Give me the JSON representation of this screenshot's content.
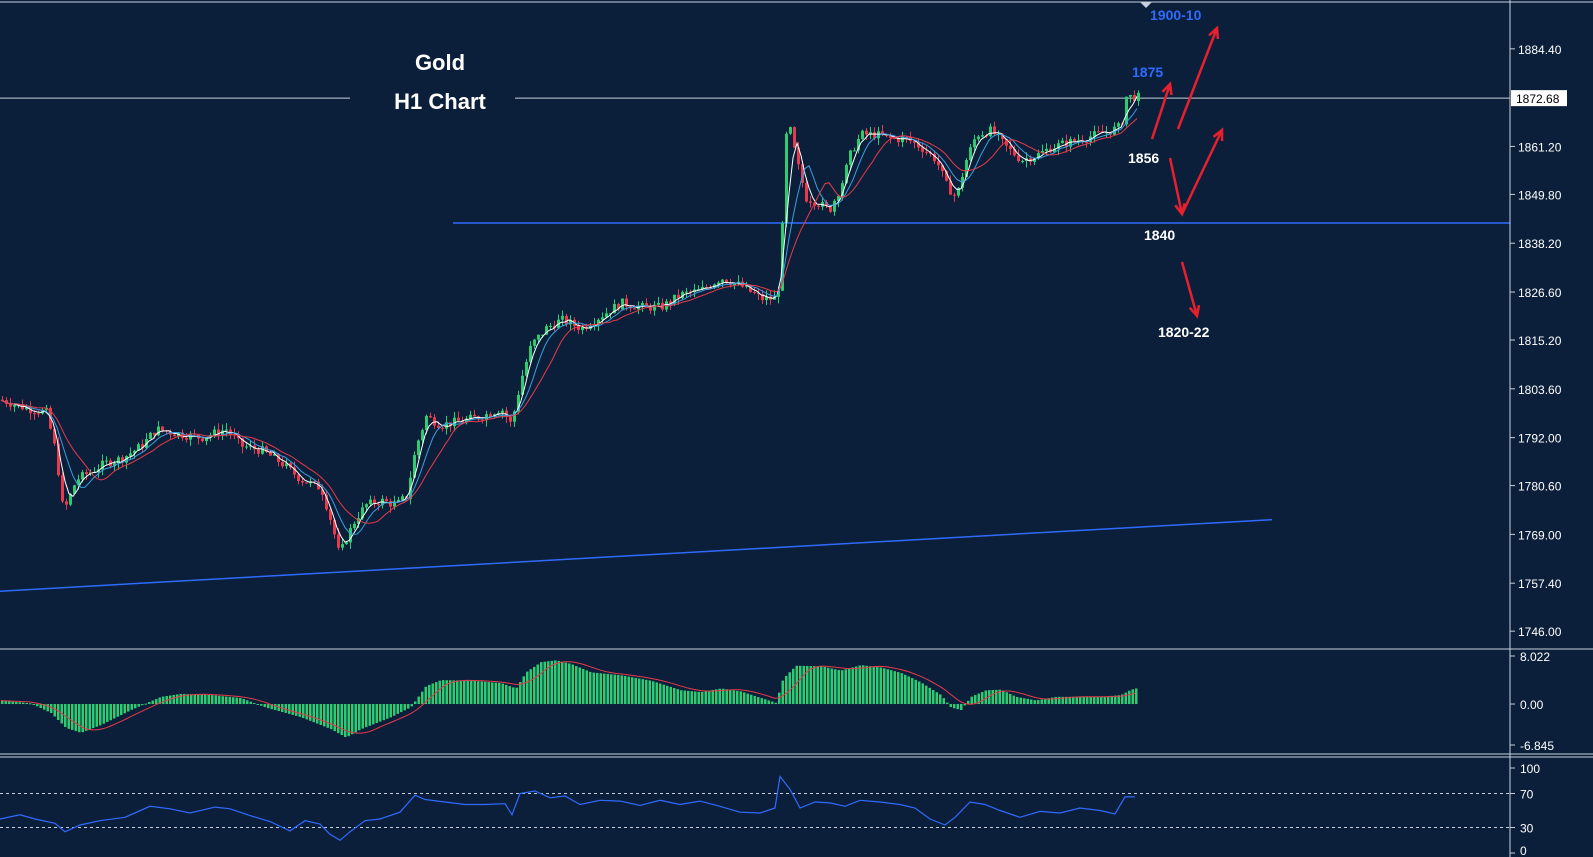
{
  "chart_data": {
    "type": "candlestick",
    "title": "Gold",
    "subtitle": "H1 Chart",
    "current_price": "1872.68",
    "price_axis_ticks": [
      "1884.40",
      "1872.68",
      "1861.20",
      "1849.80",
      "1838.20",
      "1826.60",
      "1815.20",
      "1803.60",
      "1792.00",
      "1780.60",
      "1769.00",
      "1757.40",
      "1746.00"
    ],
    "ylim": [
      1742,
      1896
    ],
    "horizontal_level": 1843,
    "annotations": [
      {
        "text": "1900-10",
        "color": "#2f6bff"
      },
      {
        "text": "1875",
        "color": "#2f6bff"
      },
      {
        "text": "1856",
        "color": "#ffffff"
      },
      {
        "text": "1840",
        "color": "#ffffff"
      },
      {
        "text": "1820-22",
        "color": "#ffffff"
      }
    ],
    "price_path": [
      [
        0,
        1801
      ],
      [
        25,
        1799
      ],
      [
        45,
        1798
      ],
      [
        55,
        1788
      ],
      [
        62,
        1774
      ],
      [
        75,
        1782
      ],
      [
        90,
        1784
      ],
      [
        105,
        1786
      ],
      [
        120,
        1787
      ],
      [
        140,
        1790
      ],
      [
        155,
        1794
      ],
      [
        175,
        1793
      ],
      [
        200,
        1792
      ],
      [
        225,
        1794
      ],
      [
        240,
        1790
      ],
      [
        260,
        1789
      ],
      [
        280,
        1786
      ],
      [
        300,
        1782
      ],
      [
        320,
        1780
      ],
      [
        330,
        1772
      ],
      [
        338,
        1764
      ],
      [
        345,
        1768
      ],
      [
        355,
        1773
      ],
      [
        365,
        1776
      ],
      [
        380,
        1777
      ],
      [
        395,
        1776
      ],
      [
        405,
        1778
      ],
      [
        415,
        1790
      ],
      [
        425,
        1797
      ],
      [
        440,
        1795
      ],
      [
        460,
        1796
      ],
      [
        480,
        1797
      ],
      [
        500,
        1799
      ],
      [
        510,
        1795
      ],
      [
        520,
        1806
      ],
      [
        530,
        1814
      ],
      [
        545,
        1818
      ],
      [
        560,
        1820
      ],
      [
        580,
        1818
      ],
      [
        600,
        1821
      ],
      [
        620,
        1824
      ],
      [
        640,
        1823
      ],
      [
        660,
        1823
      ],
      [
        680,
        1826
      ],
      [
        700,
        1827
      ],
      [
        720,
        1830
      ],
      [
        740,
        1828
      ],
      [
        760,
        1825
      ],
      [
        775,
        1825
      ],
      [
        780,
        1832
      ],
      [
        783,
        1862
      ],
      [
        788,
        1866
      ],
      [
        795,
        1858
      ],
      [
        805,
        1849
      ],
      [
        815,
        1848
      ],
      [
        828,
        1846
      ],
      [
        840,
        1852
      ],
      [
        850,
        1860
      ],
      [
        860,
        1864
      ],
      [
        875,
        1864
      ],
      [
        890,
        1863
      ],
      [
        905,
        1863
      ],
      [
        920,
        1861
      ],
      [
        935,
        1858
      ],
      [
        945,
        1852
      ],
      [
        955,
        1849
      ],
      [
        965,
        1858
      ],
      [
        975,
        1864
      ],
      [
        990,
        1865
      ],
      [
        1005,
        1861
      ],
      [
        1020,
        1858
      ],
      [
        1035,
        1859
      ],
      [
        1050,
        1861
      ],
      [
        1065,
        1862
      ],
      [
        1080,
        1863
      ],
      [
        1095,
        1864
      ],
      [
        1110,
        1865
      ],
      [
        1120,
        1866
      ],
      [
        1125,
        1873
      ],
      [
        1135,
        1873
      ],
      [
        1140,
        1872.7
      ]
    ],
    "macd_labels": [
      "8.022",
      "0.00",
      "-6.845"
    ],
    "macd_ylim": [
      -6.845,
      8.022
    ],
    "macd_path": [
      [
        0,
        0.6
      ],
      [
        30,
        0.1
      ],
      [
        50,
        -1.5
      ],
      [
        65,
        -4.0
      ],
      [
        80,
        -4.8
      ],
      [
        100,
        -3.5
      ],
      [
        130,
        -1.0
      ],
      [
        160,
        1.2
      ],
      [
        180,
        1.7
      ],
      [
        210,
        1.5
      ],
      [
        240,
        1.0
      ],
      [
        265,
        -0.6
      ],
      [
        300,
        -2.2
      ],
      [
        330,
        -4.2
      ],
      [
        345,
        -5.6
      ],
      [
        360,
        -4.2
      ],
      [
        390,
        -2.2
      ],
      [
        410,
        -0.5
      ],
      [
        425,
        3.0
      ],
      [
        440,
        4.0
      ],
      [
        470,
        3.9
      ],
      [
        500,
        3.5
      ],
      [
        515,
        2.6
      ],
      [
        525,
        5.3
      ],
      [
        540,
        7.0
      ],
      [
        555,
        7.3
      ],
      [
        570,
        6.7
      ],
      [
        590,
        5.3
      ],
      [
        620,
        4.8
      ],
      [
        650,
        3.9
      ],
      [
        680,
        2.3
      ],
      [
        700,
        2.0
      ],
      [
        720,
        2.6
      ],
      [
        740,
        2.1
      ],
      [
        760,
        1.0
      ],
      [
        775,
        0.2
      ],
      [
        782,
        4.2
      ],
      [
        795,
        6.4
      ],
      [
        820,
        6.3
      ],
      [
        840,
        5.6
      ],
      [
        860,
        6.5
      ],
      [
        880,
        6.1
      ],
      [
        900,
        5.2
      ],
      [
        920,
        3.6
      ],
      [
        940,
        1.5
      ],
      [
        950,
        -0.6
      ],
      [
        960,
        -1.0
      ],
      [
        970,
        1.2
      ],
      [
        985,
        2.3
      ],
      [
        1000,
        2.4
      ],
      [
        1015,
        1.2
      ],
      [
        1035,
        0.6
      ],
      [
        1055,
        1.2
      ],
      [
        1080,
        1.2
      ],
      [
        1100,
        1.2
      ],
      [
        1120,
        1.5
      ],
      [
        1130,
        2.4
      ],
      [
        1140,
        2.8
      ]
    ],
    "rsi_labels": [
      "100",
      "70",
      "30",
      "0"
    ],
    "rsi_levels": [
      70,
      30
    ],
    "rsi_path": [
      [
        0,
        40
      ],
      [
        20,
        45
      ],
      [
        35,
        40
      ],
      [
        55,
        35
      ],
      [
        65,
        25
      ],
      [
        80,
        33
      ],
      [
        100,
        38
      ],
      [
        125,
        42
      ],
      [
        150,
        55
      ],
      [
        170,
        52
      ],
      [
        190,
        47
      ],
      [
        215,
        54
      ],
      [
        230,
        52
      ],
      [
        250,
        44
      ],
      [
        270,
        37
      ],
      [
        290,
        26
      ],
      [
        305,
        38
      ],
      [
        320,
        34
      ],
      [
        330,
        22
      ],
      [
        340,
        15
      ],
      [
        350,
        25
      ],
      [
        365,
        38
      ],
      [
        380,
        40
      ],
      [
        400,
        48
      ],
      [
        415,
        68
      ],
      [
        425,
        63
      ],
      [
        445,
        60
      ],
      [
        465,
        57
      ],
      [
        485,
        57
      ],
      [
        505,
        58
      ],
      [
        512,
        45
      ],
      [
        520,
        70
      ],
      [
        535,
        73
      ],
      [
        550,
        65
      ],
      [
        565,
        67
      ],
      [
        580,
        57
      ],
      [
        600,
        62
      ],
      [
        620,
        61
      ],
      [
        640,
        56
      ],
      [
        660,
        62
      ],
      [
        680,
        57
      ],
      [
        700,
        61
      ],
      [
        720,
        55
      ],
      [
        740,
        48
      ],
      [
        760,
        47
      ],
      [
        775,
        53
      ],
      [
        780,
        90
      ],
      [
        790,
        75
      ],
      [
        800,
        53
      ],
      [
        815,
        60
      ],
      [
        830,
        59
      ],
      [
        845,
        55
      ],
      [
        860,
        62
      ],
      [
        880,
        60
      ],
      [
        900,
        57
      ],
      [
        915,
        53
      ],
      [
        930,
        40
      ],
      [
        945,
        33
      ],
      [
        955,
        42
      ],
      [
        970,
        60
      ],
      [
        985,
        57
      ],
      [
        1000,
        50
      ],
      [
        1020,
        42
      ],
      [
        1040,
        49
      ],
      [
        1060,
        47
      ],
      [
        1080,
        53
      ],
      [
        1100,
        50
      ],
      [
        1115,
        46
      ],
      [
        1125,
        66
      ],
      [
        1135,
        66
      ]
    ]
  }
}
